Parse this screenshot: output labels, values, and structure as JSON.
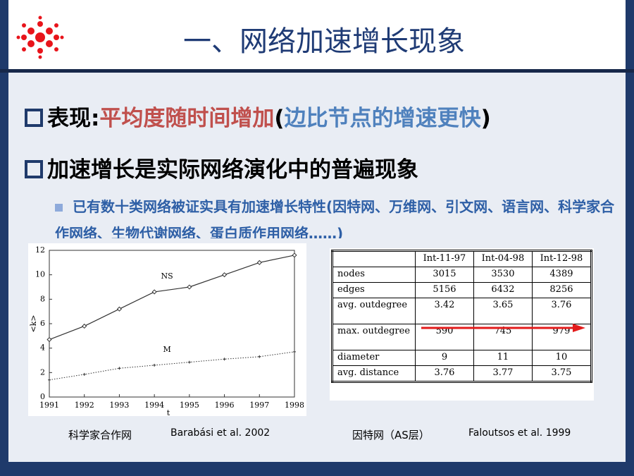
{
  "header": {
    "title": "一、网络加速增长现象"
  },
  "bullets": [
    {
      "segments": [
        {
          "text": "表现:",
          "color": "#000000"
        },
        {
          "text": "平均度随时间增加",
          "color": "#c0504d"
        },
        {
          "text": "(",
          "color": "#000000"
        },
        {
          "text": "边比节点的增速更快",
          "color": "#4f81bd"
        },
        {
          "text": ")",
          "color": "#000000"
        }
      ]
    },
    {
      "segments": [
        {
          "text": "加速增长是实际网络演化中的普遍现象",
          "color": "#000000"
        }
      ]
    }
  ],
  "sub_bullet": "已有数十类网络被证实具有加速增长特性(因特网、万维网、引文网、语言网、科学家合作网络、生物代谢网络、蛋白质作用网络……)",
  "chart_data": {
    "type": "line",
    "x": [
      1991,
      1992,
      1993,
      1994,
      1995,
      1996,
      1997,
      1998
    ],
    "series": [
      {
        "name": "NS",
        "color": "#333333",
        "values": [
          4.7,
          5.8,
          7.2,
          8.6,
          9.0,
          10.0,
          11.0,
          11.6
        ]
      },
      {
        "name": "M",
        "color": "#333333",
        "values": [
          1.4,
          1.85,
          2.35,
          2.6,
          2.85,
          3.1,
          3.3,
          3.7
        ]
      }
    ],
    "xlim": [
      1991,
      1998
    ],
    "xticks": [
      1991,
      1992,
      1993,
      1994,
      1995,
      1996,
      1997,
      1998
    ],
    "ylim": [
      0,
      12
    ],
    "yticks": [
      0,
      2,
      4,
      6,
      8,
      10,
      12
    ],
    "x_label": "t",
    "y_label": "<k>"
  },
  "table": {
    "columns": [
      "Int-11-97",
      "Int-04-98",
      "Int-12-98"
    ],
    "rows": [
      {
        "label": "nodes",
        "values": [
          3015,
          3530,
          4389
        ]
      },
      {
        "label": "edges",
        "values": [
          5156,
          6432,
          8256
        ]
      },
      {
        "label": "avg. outdegree",
        "values": [
          3.42,
          3.65,
          3.76
        ]
      },
      {
        "label": "max. outdegree",
        "values": [
          590,
          745,
          979
        ]
      },
      {
        "label": "diameter",
        "values": [
          9,
          11,
          10
        ]
      },
      {
        "label": "avg. distance",
        "values": [
          3.76,
          3.77,
          3.75
        ]
      }
    ]
  },
  "captions": [
    "科学家合作网",
    "Barabási et al.  2002",
    "因特网（AS层）",
    "Faloutsos et al.  1999"
  ]
}
